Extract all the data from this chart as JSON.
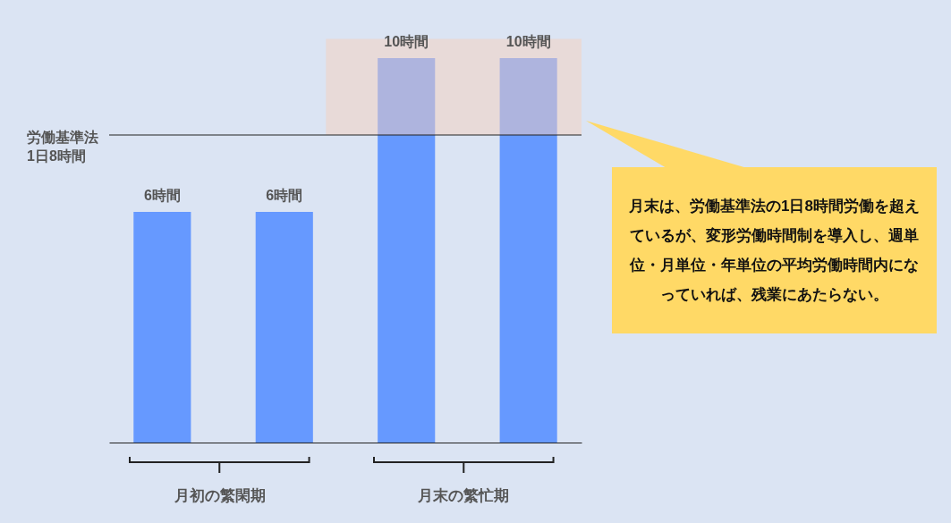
{
  "chart_data": {
    "type": "bar",
    "categories": [
      null,
      null,
      null,
      null
    ],
    "values": [
      6,
      6,
      10,
      10
    ],
    "color": "#6699ff",
    "value_labels": [
      "6時間",
      "6時間",
      "10時間",
      "10時間"
    ],
    "ref_lines": [
      {
        "axis": "y",
        "value": 8,
        "label": "労働基準法\n1日8時間",
        "color": "#222222"
      }
    ],
    "bands": [
      {
        "axis": "y",
        "from": 8,
        "to": 10.5,
        "color": "#f5d0bd"
      }
    ],
    "annotations": [
      "月初の繁閑期",
      "月末の繁忙期",
      "月末は、労働基準法の1日8時間労働を超えているが、変形労働時間制を導入し、週単位・月単位・年単位の平均労働時間内になっていれば、残業にあたらない。"
    ]
  }
}
